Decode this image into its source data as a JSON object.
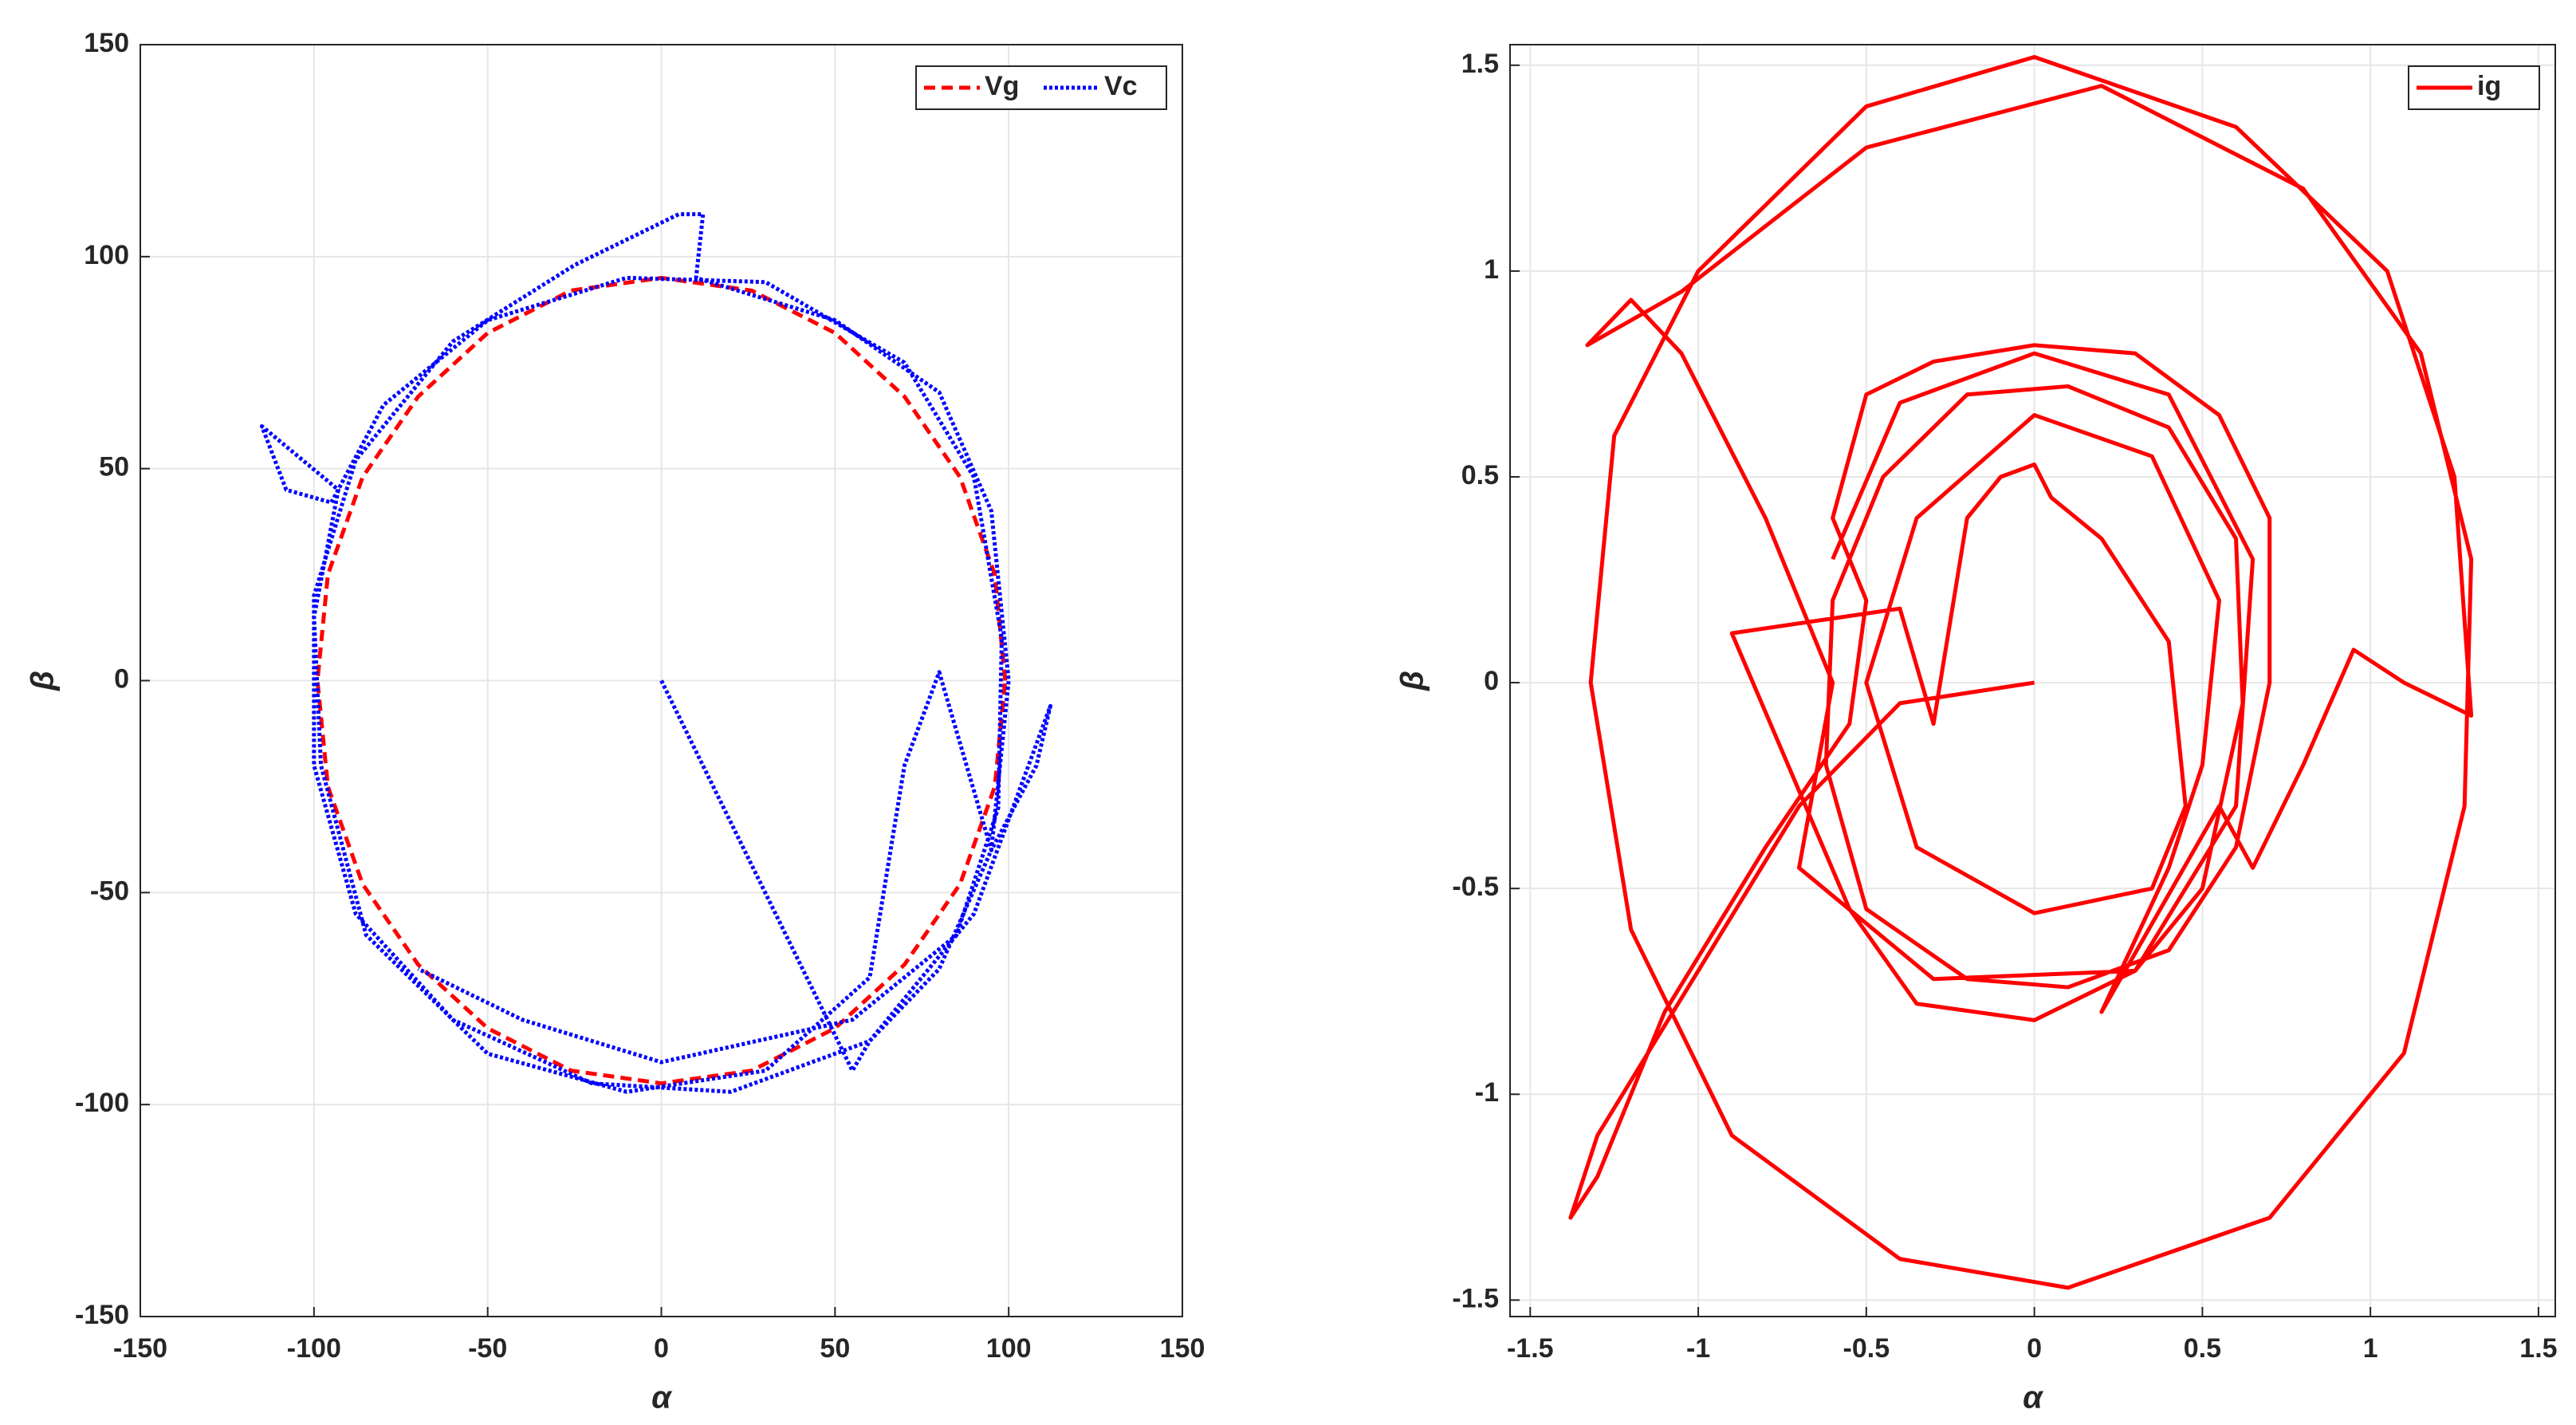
{
  "chart_data": [
    {
      "type": "line",
      "xlabel": "α",
      "ylabel": "β",
      "grid": true,
      "legend": "upper right",
      "xlim": [
        -150,
        150
      ],
      "ylim": [
        -150,
        150
      ],
      "xticks": [
        -150,
        -100,
        -50,
        0,
        50,
        100,
        150
      ],
      "yticks": [
        -150,
        -100,
        -50,
        0,
        50,
        100,
        150
      ],
      "series": [
        {
          "name": "Vg",
          "color": "#ff0000",
          "style": "dashed",
          "x": [
            99,
            96,
            86,
            70,
            50,
            26,
            0,
            -26,
            -50,
            -70,
            -86,
            -96,
            -99,
            -96,
            -86,
            -70,
            -50,
            -26,
            0,
            26,
            50,
            70,
            86,
            96,
            99
          ],
          "values": [
            0,
            25,
            48,
            67,
            82,
            92,
            95,
            92,
            82,
            67,
            48,
            25,
            0,
            -25,
            -48,
            -67,
            -82,
            -92,
            -95,
            -92,
            -82,
            -67,
            -48,
            -25,
            0
          ]
        },
        {
          "name": "Vc",
          "color": "#0000ff",
          "style": "dotted",
          "x": [
            0,
            55,
            60,
            80,
            95,
            100,
            95,
            80,
            50,
            10,
            12,
            5,
            -25,
            -60,
            -88,
            -100,
            -100,
            -88,
            -60,
            -20,
            20,
            60,
            90,
            112,
            108,
            95,
            80,
            70,
            60,
            30,
            -10,
            -50,
            -85,
            -98,
            -100,
            -93,
            -115,
            -108,
            -95,
            -80,
            -50,
            -10,
            30,
            70,
            90,
            98,
            97,
            85,
            55,
            0,
            -40,
            -70
          ],
          "values": [
            0,
            -92,
            -85,
            -68,
            -40,
            0,
            40,
            68,
            85,
            95,
            110,
            110,
            98,
            80,
            52,
            20,
            -20,
            -55,
            -80,
            -95,
            -97,
            -85,
            -55,
            -6,
            -20,
            -40,
            2,
            -20,
            -70,
            -92,
            -97,
            -88,
            -60,
            -20,
            15,
            45,
            60,
            45,
            42,
            65,
            85,
            95,
            94,
            75,
            48,
            10,
            -30,
            -60,
            -80,
            -90,
            -80,
            -68
          ]
        }
      ]
    },
    {
      "type": "line",
      "xlabel": "α",
      "ylabel": "β",
      "grid": true,
      "legend": "upper right",
      "xlim": [
        -1.56,
        1.55
      ],
      "ylim": [
        -1.54,
        1.55
      ],
      "xticks": [
        -1.5,
        -1,
        -0.5,
        0,
        0.5,
        1,
        1.5
      ],
      "yticks": [
        -1.5,
        -1,
        -0.5,
        0,
        0.5,
        1,
        1.5
      ],
      "series": [
        {
          "name": "ig",
          "color": "#ff0000",
          "style": "solid",
          "x": [
            0,
            -0.4,
            -0.7,
            -1.0,
            -1.3,
            -1.38,
            -1.3,
            -1.1,
            -0.8,
            -0.55,
            -0.5,
            -0.6,
            -0.5,
            -0.3,
            0.0,
            0.3,
            0.55,
            0.7,
            0.7,
            0.6,
            0.4,
            0.1,
            -0.2,
            -0.5,
            -0.62,
            -0.6,
            -0.45,
            -0.2,
            0.1,
            0.4,
            0.6,
            0.62,
            0.5,
            0.3,
            0.0,
            -0.35,
            -0.55,
            -0.9,
            -0.4,
            -0.3,
            -0.2,
            -0.1,
            0,
            0.05,
            0.2,
            0.4,
            0.45,
            0.35,
            0.0,
            -0.35,
            -0.5,
            -0.35,
            0,
            0.35,
            0.55,
            0.5,
            0.4,
            0.2,
            0.55,
            0.65,
            0.8,
            0.95,
            1.1,
            1.3,
            1.25,
            1.05,
            0.6,
            0,
            -0.5,
            -1.0,
            -1.25,
            -1.32,
            -1.2,
            -0.9,
            -0.4,
            0.1,
            0.7,
            1.1,
            1.28,
            1.3,
            1.15,
            0.8,
            0.2,
            -0.5,
            -1.05,
            -1.33,
            -1.2,
            -1.05,
            -0.8,
            -0.6,
            -0.7,
            -0.3,
            0.3,
            0.6,
            0.65,
            0.4,
            0,
            -0.4,
            -0.6
          ],
          "values": [
            0,
            -0.05,
            -0.3,
            -0.7,
            -1.1,
            -1.3,
            -1.2,
            -0.8,
            -0.4,
            -0.1,
            0.2,
            0.4,
            0.7,
            0.78,
            0.82,
            0.8,
            0.65,
            0.4,
            0.0,
            -0.4,
            -0.65,
            -0.74,
            -0.72,
            -0.55,
            -0.2,
            0.2,
            0.5,
            0.7,
            0.72,
            0.62,
            0.35,
            -0.05,
            -0.5,
            -0.7,
            -0.82,
            -0.78,
            -0.55,
            0.12,
            0.18,
            -0.1,
            0.4,
            0.5,
            0.53,
            0.45,
            0.35,
            0.1,
            -0.3,
            -0.5,
            -0.56,
            -0.4,
            0,
            0.4,
            0.65,
            0.55,
            0.2,
            -0.2,
            -0.45,
            -0.8,
            -0.3,
            -0.45,
            -0.2,
            0.08,
            0.0,
            -0.08,
            0.5,
            1.0,
            1.35,
            1.52,
            1.4,
            1.0,
            0.6,
            0.0,
            -0.6,
            -1.1,
            -1.4,
            -1.47,
            -1.3,
            -0.9,
            -0.3,
            0.3,
            0.8,
            1.2,
            1.45,
            1.3,
            0.95,
            0.82,
            0.93,
            0.8,
            0.4,
            0.0,
            -0.45,
            -0.72,
            -0.7,
            -0.3,
            0.3,
            0.7,
            0.8,
            0.68,
            0.3
          ]
        }
      ]
    }
  ]
}
